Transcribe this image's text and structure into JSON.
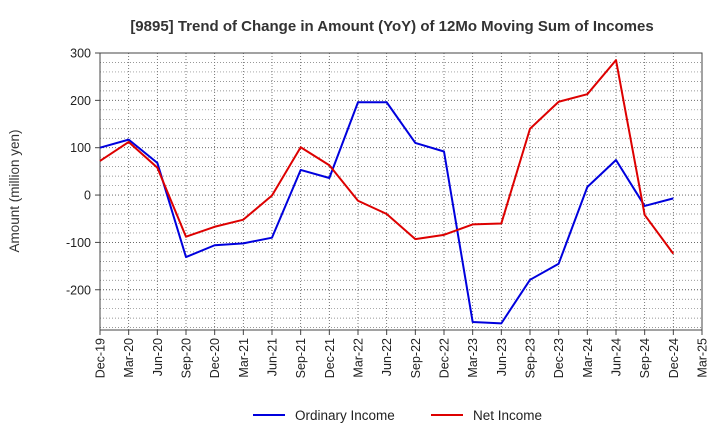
{
  "chart_data": {
    "type": "line",
    "title": "[9895]  Trend of Change in Amount (YoY) of 12Mo Moving Sum of Incomes",
    "xlabel": "",
    "ylabel": "Amount (million yen)",
    "ylim": [
      -285,
      300
    ],
    "yticks": [
      300,
      200,
      100,
      0,
      -100,
      -200
    ],
    "ytick_labels": [
      "300",
      "200",
      "100",
      "0",
      "-100",
      "-200"
    ],
    "grid": true,
    "legend_position": "bottom",
    "categories": [
      "Dec-19",
      "Mar-20",
      "Jun-20",
      "Sep-20",
      "Dec-20",
      "Mar-21",
      "Jun-21",
      "Sep-21",
      "Dec-21",
      "Mar-22",
      "Jun-22",
      "Sep-22",
      "Dec-22",
      "Mar-23",
      "Jun-23",
      "Sep-23",
      "Dec-23",
      "Mar-24",
      "Jun-24",
      "Sep-24",
      "Dec-24",
      "Mar-25"
    ],
    "series": [
      {
        "name": "Ordinary Income",
        "color": "#0000dd",
        "values": [
          100,
          117,
          68,
          -131,
          -106,
          -102,
          -90,
          53,
          36,
          196,
          196,
          110,
          92,
          -268,
          -271,
          -179,
          -145,
          17,
          74,
          -23,
          -7,
          null
        ]
      },
      {
        "name": "Net Income",
        "color": "#dd0000",
        "values": [
          72,
          112,
          58,
          -88,
          -67,
          -52,
          -1,
          101,
          63,
          -12,
          -40,
          -93,
          -84,
          -62,
          -60,
          140,
          197,
          213,
          285,
          -42,
          -124,
          null
        ]
      }
    ]
  }
}
